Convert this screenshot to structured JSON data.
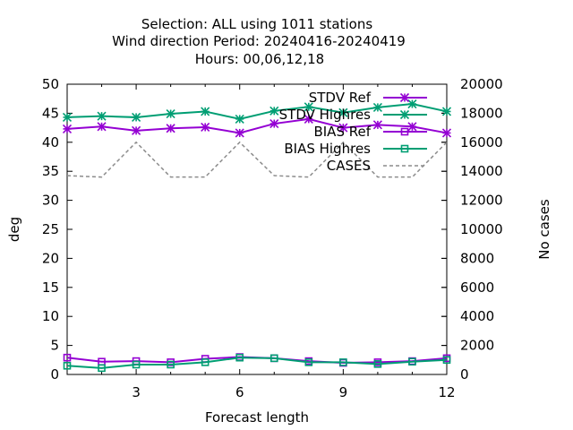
{
  "chart_data": {
    "type": "line",
    "title_lines": [
      "Selection: ALL using  1011 stations",
      "Wind direction   Period: 20240416-20240419",
      "Hours:  00,06,12,18"
    ],
    "xlabel": "Forecast length",
    "ylabel": "deg",
    "y2label": "No cases",
    "xlim": [
      1,
      12
    ],
    "ylim": [
      0,
      50
    ],
    "y2lim": [
      0,
      20000
    ],
    "xticks": [
      3,
      6,
      9,
      12
    ],
    "yticks": [
      0,
      5,
      10,
      15,
      20,
      25,
      30,
      35,
      40,
      45,
      50
    ],
    "y2ticks": [
      0,
      2000,
      4000,
      6000,
      8000,
      10000,
      12000,
      14000,
      16000,
      18000,
      20000
    ],
    "legend_position": "top-right",
    "grid": false,
    "x": [
      1,
      2,
      3,
      4,
      5,
      6,
      7,
      8,
      9,
      10,
      11,
      12
    ],
    "series": [
      {
        "name": "STDV Ref",
        "axis": "y",
        "color": "#9400d3",
        "marker": "star",
        "dash": "",
        "values": [
          42.3,
          42.7,
          42.0,
          42.4,
          42.6,
          41.6,
          43.2,
          44.0,
          42.5,
          43.0,
          42.7,
          41.6
        ]
      },
      {
        "name": "STDV Highres",
        "axis": "y",
        "color": "#009e73",
        "marker": "star",
        "dash": "",
        "values": [
          44.3,
          44.5,
          44.3,
          44.9,
          45.3,
          44.0,
          45.4,
          46.1,
          45.1,
          46.0,
          46.6,
          45.3
        ]
      },
      {
        "name": "BIAS Ref",
        "axis": "y",
        "color": "#9400d3",
        "marker": "square",
        "dash": "",
        "values": [
          2.9,
          2.2,
          2.3,
          2.1,
          2.7,
          3.0,
          2.8,
          2.3,
          2.0,
          2.1,
          2.3,
          2.8
        ]
      },
      {
        "name": "BIAS Highres",
        "axis": "y",
        "color": "#009e73",
        "marker": "square",
        "dash": "",
        "values": [
          1.5,
          1.1,
          1.7,
          1.7,
          2.1,
          2.9,
          2.8,
          2.1,
          2.1,
          1.8,
          2.2,
          2.5
        ]
      },
      {
        "name": "CASES",
        "axis": "y2",
        "color": "#8c8c8c",
        "marker": "none",
        "dash": "4,3",
        "values": [
          13700,
          13600,
          16000,
          13600,
          13600,
          16000,
          13700,
          13600,
          16000,
          13600,
          13600,
          16000
        ]
      }
    ]
  }
}
